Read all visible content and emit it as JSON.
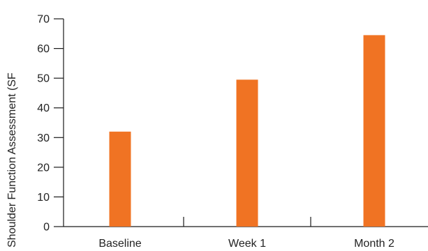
{
  "chart_data": {
    "type": "bar",
    "title": "",
    "xlabel": "",
    "ylabel": "Shoulder Function Assessment (SF",
    "categories": [
      "Baseline",
      "Week 1",
      "Month 2"
    ],
    "values": [
      32,
      49.5,
      64.5
    ],
    "ylim": [
      0,
      70
    ],
    "yticks": [
      0,
      10,
      20,
      30,
      40,
      50,
      60,
      70
    ],
    "grid": false,
    "legend": "none",
    "bar_color": "#f07323",
    "axis_color": "#1a1a1a",
    "text_color": "#222222"
  }
}
